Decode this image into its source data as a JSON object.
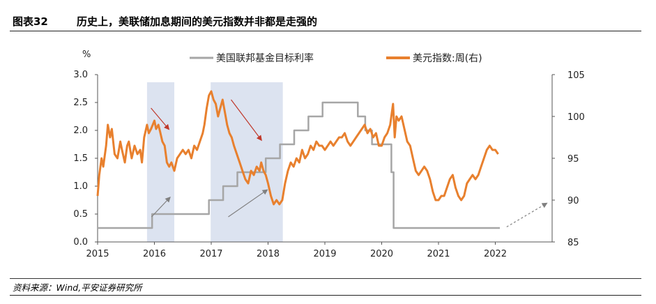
{
  "header": {
    "figure_number": "图表32",
    "title": "历史上，美联储加息期间的美元指数并非都是走强的"
  },
  "footer": {
    "source": "资料来源：Wind,平安证券研究所"
  },
  "chart_data": {
    "type": "line",
    "left_axis_unit": "%",
    "x_ticks": [
      "2015",
      "2016",
      "2017",
      "2018",
      "2019",
      "2020",
      "2021",
      "2022"
    ],
    "x_range": [
      2015.0,
      2023.0
    ],
    "y_left": {
      "range": [
        0,
        3.0
      ],
      "ticks": [
        "0.0",
        "0.5",
        "1.0",
        "1.5",
        "2.0",
        "2.5",
        "3.0"
      ]
    },
    "y_right": {
      "range": [
        85,
        105
      ],
      "ticks": [
        "85",
        "90",
        "95",
        "100",
        "105"
      ]
    },
    "legend_position": "top",
    "series": [
      {
        "name": "美国联邦基金目标利率",
        "axis": "left",
        "color": "#a6a6a6",
        "step": true,
        "points": [
          [
            2015.0,
            0.25
          ],
          [
            2015.96,
            0.25
          ],
          [
            2015.96,
            0.5
          ],
          [
            2016.96,
            0.5
          ],
          [
            2016.96,
            0.75
          ],
          [
            2017.21,
            0.75
          ],
          [
            2017.21,
            1.0
          ],
          [
            2017.46,
            1.0
          ],
          [
            2017.46,
            1.25
          ],
          [
            2017.96,
            1.25
          ],
          [
            2017.96,
            1.5
          ],
          [
            2018.21,
            1.5
          ],
          [
            2018.21,
            1.75
          ],
          [
            2018.46,
            1.75
          ],
          [
            2018.46,
            2.0
          ],
          [
            2018.71,
            2.0
          ],
          [
            2018.71,
            2.25
          ],
          [
            2018.96,
            2.25
          ],
          [
            2018.96,
            2.5
          ],
          [
            2019.58,
            2.5
          ],
          [
            2019.58,
            2.25
          ],
          [
            2019.71,
            2.25
          ],
          [
            2019.71,
            2.0
          ],
          [
            2019.83,
            2.0
          ],
          [
            2019.83,
            1.75
          ],
          [
            2020.17,
            1.75
          ],
          [
            2020.17,
            1.25
          ],
          [
            2020.21,
            1.25
          ],
          [
            2020.21,
            0.25
          ],
          [
            2022.08,
            0.25
          ]
        ]
      },
      {
        "name": "美元指数:周(右)",
        "axis": "right",
        "color": "#e8802e",
        "points": [
          [
            2015.0,
            90.5
          ],
          [
            2015.03,
            93.0
          ],
          [
            2015.07,
            95.0
          ],
          [
            2015.1,
            94.0
          ],
          [
            2015.15,
            96.5
          ],
          [
            2015.18,
            99.0
          ],
          [
            2015.22,
            97.5
          ],
          [
            2015.25,
            98.5
          ],
          [
            2015.3,
            95.5
          ],
          [
            2015.35,
            95.0
          ],
          [
            2015.4,
            97.0
          ],
          [
            2015.43,
            96.0
          ],
          [
            2015.48,
            94.5
          ],
          [
            2015.52,
            96.5
          ],
          [
            2015.55,
            97.0
          ],
          [
            2015.6,
            95.0
          ],
          [
            2015.65,
            96.5
          ],
          [
            2015.7,
            95.5
          ],
          [
            2015.75,
            96.0
          ],
          [
            2015.78,
            94.5
          ],
          [
            2015.82,
            97.5
          ],
          [
            2015.87,
            99.0
          ],
          [
            2015.9,
            98.0
          ],
          [
            2015.94,
            98.5
          ],
          [
            2015.97,
            99.0
          ],
          [
            2016.0,
            99.5
          ],
          [
            2016.03,
            98.5
          ],
          [
            2016.07,
            99.0
          ],
          [
            2016.1,
            98.2
          ],
          [
            2016.14,
            97.0
          ],
          [
            2016.18,
            96.5
          ],
          [
            2016.22,
            94.5
          ],
          [
            2016.26,
            94.0
          ],
          [
            2016.3,
            94.5
          ],
          [
            2016.35,
            93.5
          ],
          [
            2016.4,
            95.0
          ],
          [
            2016.45,
            95.5
          ],
          [
            2016.5,
            96.0
          ],
          [
            2016.55,
            95.5
          ],
          [
            2016.6,
            96.0
          ],
          [
            2016.65,
            95.0
          ],
          [
            2016.7,
            96.5
          ],
          [
            2016.75,
            96.0
          ],
          [
            2016.8,
            97.0
          ],
          [
            2016.85,
            98.0
          ],
          [
            2016.88,
            99.0
          ],
          [
            2016.92,
            101.0
          ],
          [
            2016.96,
            102.5
          ],
          [
            2017.0,
            103.0
          ],
          [
            2017.04,
            102.0
          ],
          [
            2017.08,
            101.5
          ],
          [
            2017.12,
            100.0
          ],
          [
            2017.16,
            101.0
          ],
          [
            2017.2,
            102.0
          ],
          [
            2017.24,
            100.5
          ],
          [
            2017.28,
            99.0
          ],
          [
            2017.32,
            98.0
          ],
          [
            2017.36,
            97.5
          ],
          [
            2017.4,
            96.5
          ],
          [
            2017.45,
            95.5
          ],
          [
            2017.5,
            94.5
          ],
          [
            2017.55,
            93.5
          ],
          [
            2017.6,
            92.5
          ],
          [
            2017.65,
            92.0
          ],
          [
            2017.7,
            93.5
          ],
          [
            2017.75,
            93.0
          ],
          [
            2017.8,
            94.0
          ],
          [
            2017.85,
            93.5
          ],
          [
            2017.88,
            94.5
          ],
          [
            2017.92,
            93.5
          ],
          [
            2017.96,
            93.0
          ],
          [
            2018.0,
            92.0
          ],
          [
            2018.05,
            90.5
          ],
          [
            2018.1,
            89.5
          ],
          [
            2018.15,
            90.0
          ],
          [
            2018.2,
            89.5
          ],
          [
            2018.25,
            90.0
          ],
          [
            2018.3,
            92.0
          ],
          [
            2018.35,
            93.5
          ],
          [
            2018.4,
            94.5
          ],
          [
            2018.45,
            94.0
          ],
          [
            2018.5,
            95.0
          ],
          [
            2018.55,
            94.5
          ],
          [
            2018.6,
            96.0
          ],
          [
            2018.65,
            95.0
          ],
          [
            2018.7,
            95.5
          ],
          [
            2018.75,
            96.5
          ],
          [
            2018.8,
            96.0
          ],
          [
            2018.85,
            97.0
          ],
          [
            2018.9,
            96.5
          ],
          [
            2018.95,
            96.5
          ],
          [
            2019.0,
            96.0
          ],
          [
            2019.05,
            96.5
          ],
          [
            2019.1,
            97.0
          ],
          [
            2019.15,
            96.5
          ],
          [
            2019.2,
            97.0
          ],
          [
            2019.25,
            97.5
          ],
          [
            2019.3,
            97.5
          ],
          [
            2019.35,
            98.0
          ],
          [
            2019.4,
            97.0
          ],
          [
            2019.45,
            96.5
          ],
          [
            2019.5,
            97.0
          ],
          [
            2019.55,
            97.5
          ],
          [
            2019.6,
            98.0
          ],
          [
            2019.65,
            98.5
          ],
          [
            2019.7,
            99.0
          ],
          [
            2019.75,
            98.0
          ],
          [
            2019.8,
            98.5
          ],
          [
            2019.85,
            97.5
          ],
          [
            2019.9,
            98.0
          ],
          [
            2019.95,
            96.5
          ],
          [
            2020.0,
            96.5
          ],
          [
            2020.05,
            97.5
          ],
          [
            2020.1,
            98.0
          ],
          [
            2020.15,
            99.0
          ],
          [
            2020.2,
            101.5
          ],
          [
            2020.23,
            97.5
          ],
          [
            2020.26,
            100.0
          ],
          [
            2020.3,
            99.5
          ],
          [
            2020.35,
            100.0
          ],
          [
            2020.4,
            98.5
          ],
          [
            2020.45,
            97.0
          ],
          [
            2020.5,
            96.5
          ],
          [
            2020.55,
            95.0
          ],
          [
            2020.6,
            93.5
          ],
          [
            2020.65,
            93.0
          ],
          [
            2020.7,
            93.5
          ],
          [
            2020.75,
            94.0
          ],
          [
            2020.8,
            93.5
          ],
          [
            2020.85,
            92.5
          ],
          [
            2020.9,
            91.0
          ],
          [
            2020.95,
            90.0
          ],
          [
            2021.0,
            90.0
          ],
          [
            2021.05,
            90.5
          ],
          [
            2021.1,
            90.5
          ],
          [
            2021.15,
            91.5
          ],
          [
            2021.2,
            92.5
          ],
          [
            2021.25,
            93.0
          ],
          [
            2021.3,
            91.5
          ],
          [
            2021.35,
            90.5
          ],
          [
            2021.4,
            90.0
          ],
          [
            2021.45,
            90.5
          ],
          [
            2021.5,
            92.0
          ],
          [
            2021.55,
            92.5
          ],
          [
            2021.6,
            93.0
          ],
          [
            2021.65,
            92.5
          ],
          [
            2021.7,
            93.0
          ],
          [
            2021.75,
            94.0
          ],
          [
            2021.8,
            95.0
          ],
          [
            2021.85,
            96.0
          ],
          [
            2021.9,
            96.5
          ],
          [
            2021.95,
            96.0
          ],
          [
            2022.0,
            96.0
          ],
          [
            2022.05,
            95.5
          ]
        ]
      }
    ],
    "shaded_regions": [
      {
        "from": 2015.87,
        "to": 2016.35
      },
      {
        "from": 2016.99,
        "to": 2018.26
      }
    ],
    "annotations": [
      {
        "kind": "red-arrow",
        "x1": 2015.94,
        "y1": 101.0,
        "x2": 2016.25,
        "y2": 98.5
      },
      {
        "kind": "red-arrow",
        "x1": 2017.35,
        "y1": 102.0,
        "x2": 2017.88,
        "y2": 97.2
      },
      {
        "kind": "gray-arrow",
        "x1": 2015.95,
        "y1": 88.0,
        "x2": 2016.27,
        "y2": 90.3
      },
      {
        "kind": "gray-arrow",
        "x1": 2017.3,
        "y1": 88.0,
        "x2": 2017.98,
        "y2": 91.2
      },
      {
        "kind": "gray-dashed-arrow",
        "x1": 2022.2,
        "y1": 86.8,
        "x2": 2022.9,
        "y2": 89.6
      }
    ]
  }
}
